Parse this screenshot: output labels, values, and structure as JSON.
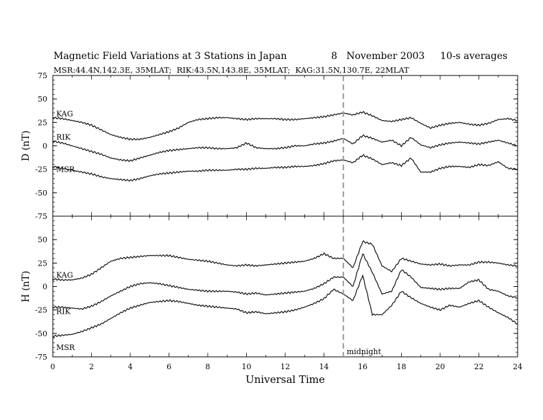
{
  "title": {
    "main": "Magnetic Field Variations at 3 Stations in Japan",
    "date": "8   November 2003",
    "averaging": "10-s averages",
    "stations": "MSR:44.4N,142.3E, 35MLAT;  RIK:43.5N,143.8E, 35MLAT;  KAG:31.5N,130.7E, 22MLAT"
  },
  "chart_data": [
    {
      "type": "line",
      "panel": "D",
      "ylabel": "D (nT)",
      "ylim": [
        -75,
        75
      ],
      "yticks": [
        -75,
        -50,
        -25,
        0,
        25,
        50,
        75
      ],
      "xlim": [
        0,
        24
      ],
      "grid": false,
      "series": [
        {
          "name": "KAG",
          "x": [
            0,
            0.5,
            1,
            1.5,
            2,
            2.5,
            3,
            3.5,
            4,
            4.5,
            5,
            5.5,
            6,
            6.5,
            7,
            7.5,
            8,
            8.5,
            9,
            9.5,
            10,
            10.5,
            11,
            11.5,
            12,
            12.5,
            13,
            13.5,
            14,
            14.5,
            15,
            15.5,
            16,
            16.5,
            17,
            17.5,
            18,
            18.5,
            19,
            19.5,
            20,
            20.5,
            21,
            21.5,
            22,
            22.5,
            23,
            23.5,
            24
          ],
          "values": [
            30,
            29,
            27,
            25,
            22,
            17,
            12,
            9,
            7,
            7,
            9,
            12,
            15,
            19,
            25,
            28,
            29,
            30,
            30,
            29,
            28,
            29,
            29,
            29,
            28,
            28,
            29,
            30,
            31,
            33,
            35,
            33,
            36,
            32,
            27,
            26,
            28,
            30,
            24,
            19,
            22,
            24,
            25,
            23,
            22,
            24,
            28,
            29,
            27
          ]
        },
        {
          "name": "RIK",
          "x": [
            0,
            0.5,
            1,
            1.5,
            2,
            2.5,
            3,
            3.5,
            4,
            4.5,
            5,
            5.5,
            6,
            6.5,
            7,
            7.5,
            8,
            8.5,
            9,
            9.5,
            10,
            10.5,
            11,
            11.5,
            12,
            12.5,
            13,
            13.5,
            14,
            14.5,
            15,
            15.5,
            16,
            16.5,
            17,
            17.5,
            18,
            18.5,
            19,
            19.5,
            20,
            20.5,
            21,
            21.5,
            22,
            22.5,
            23,
            23.5,
            24
          ],
          "values": [
            5,
            3,
            0,
            -3,
            -6,
            -9,
            -13,
            -15,
            -16,
            -13,
            -10,
            -7,
            -5,
            -4,
            -3,
            -2,
            -2,
            -3,
            -3,
            -2,
            3,
            -2,
            -3,
            -3,
            -2,
            0,
            0,
            2,
            3,
            5,
            8,
            2,
            11,
            8,
            4,
            6,
            0,
            9,
            1,
            -2,
            1,
            3,
            4,
            3,
            2,
            4,
            6,
            3,
            0
          ]
        },
        {
          "name": "MSR",
          "x": [
            0,
            0.5,
            1,
            1.5,
            2,
            2.5,
            3,
            3.5,
            4,
            4.5,
            5,
            5.5,
            6,
            6.5,
            7,
            7.5,
            8,
            8.5,
            9,
            9.5,
            10,
            10.5,
            11,
            11.5,
            12,
            12.5,
            13,
            13.5,
            14,
            14.5,
            15,
            15.5,
            16,
            16.5,
            17,
            17.5,
            18,
            18.5,
            19,
            19.5,
            20,
            20.5,
            21,
            21.5,
            22,
            22.5,
            23,
            23.5,
            24
          ],
          "values": [
            -22,
            -24,
            -26,
            -28,
            -30,
            -33,
            -35,
            -36,
            -37,
            -35,
            -32,
            -30,
            -29,
            -28,
            -27,
            -27,
            -26,
            -26,
            -26,
            -25,
            -25,
            -24,
            -24,
            -23,
            -23,
            -22,
            -22,
            -21,
            -19,
            -16,
            -15,
            -18,
            -10,
            -14,
            -20,
            -18,
            -21,
            -13,
            -28,
            -28,
            -24,
            -22,
            -22,
            -23,
            -20,
            -21,
            -17,
            -24,
            -25
          ]
        }
      ]
    },
    {
      "type": "line",
      "panel": "H",
      "ylabel": "H (nT)",
      "xlabel": "Universal Time",
      "ylim": [
        -75,
        75
      ],
      "yticks": [
        -75,
        -50,
        -25,
        0,
        25,
        50,
        75
      ],
      "xlim": [
        0,
        24
      ],
      "xticks": [
        0,
        2,
        4,
        6,
        8,
        10,
        12,
        14,
        16,
        18,
        20,
        22,
        24
      ],
      "grid": false,
      "series": [
        {
          "name": "KAG",
          "x": [
            0,
            0.5,
            1,
            1.5,
            2,
            2.5,
            3,
            3.5,
            4,
            4.5,
            5,
            5.5,
            6,
            6.5,
            7,
            7.5,
            8,
            8.5,
            9,
            9.5,
            10,
            10.5,
            11,
            11.5,
            12,
            12.5,
            13,
            13.5,
            14,
            14.5,
            15,
            15.5,
            16,
            16.5,
            17,
            17.5,
            18,
            18.5,
            19,
            19.5,
            20,
            20.5,
            21,
            21.5,
            22,
            22.5,
            23,
            23.5,
            24
          ],
          "values": [
            8,
            7,
            7,
            9,
            13,
            20,
            27,
            30,
            31,
            32,
            33,
            33,
            33,
            31,
            29,
            28,
            27,
            25,
            23,
            22,
            23,
            22,
            23,
            24,
            25,
            26,
            27,
            30,
            35,
            30,
            30,
            20,
            48,
            45,
            22,
            16,
            30,
            27,
            24,
            23,
            24,
            22,
            23,
            23,
            26,
            26,
            25,
            23,
            22
          ]
        },
        {
          "name": "RIK",
          "x": [
            0,
            0.5,
            1,
            1.5,
            2,
            2.5,
            3,
            3.5,
            4,
            4.5,
            5,
            5.5,
            6,
            6.5,
            7,
            7.5,
            8,
            8.5,
            9,
            9.5,
            10,
            10.5,
            11,
            11.5,
            12,
            12.5,
            13,
            13.5,
            14,
            14.5,
            15,
            15.5,
            16,
            16.5,
            17,
            17.5,
            18,
            18.5,
            19,
            19.5,
            20,
            20.5,
            21,
            21.5,
            22,
            22.5,
            23,
            23.5,
            24
          ],
          "values": [
            -22,
            -22,
            -23,
            -24,
            -21,
            -16,
            -10,
            -5,
            0,
            3,
            4,
            3,
            1,
            -1,
            -3,
            -4,
            -5,
            -5,
            -5,
            -6,
            -8,
            -7,
            -9,
            -8,
            -7,
            -6,
            -5,
            -2,
            3,
            10,
            10,
            0,
            35,
            15,
            -8,
            -5,
            18,
            10,
            -1,
            -2,
            -3,
            -2,
            -2,
            5,
            7,
            -3,
            -5,
            -10,
            -12
          ]
        },
        {
          "name": "MSR",
          "x": [
            0,
            0.5,
            1,
            1.5,
            2,
            2.5,
            3,
            3.5,
            4,
            4.5,
            5,
            5.5,
            6,
            6.5,
            7,
            7.5,
            8,
            8.5,
            9,
            9.5,
            10,
            10.5,
            11,
            11.5,
            12,
            12.5,
            13,
            13.5,
            14,
            14.5,
            15,
            15.5,
            16,
            16.5,
            17,
            17.5,
            18,
            18.5,
            19,
            19.5,
            20,
            20.5,
            21,
            21.5,
            22,
            22.5,
            23,
            23.5,
            24
          ],
          "values": [
            -53,
            -52,
            -51,
            -48,
            -44,
            -40,
            -34,
            -28,
            -23,
            -20,
            -17,
            -16,
            -15,
            -16,
            -18,
            -20,
            -21,
            -22,
            -23,
            -24,
            -28,
            -27,
            -29,
            -28,
            -27,
            -25,
            -22,
            -18,
            -13,
            -3,
            -8,
            -15,
            12,
            -30,
            -30,
            -20,
            -5,
            -12,
            -18,
            -22,
            -25,
            -20,
            -22,
            -18,
            -15,
            -22,
            -28,
            -33,
            -40
          ]
        }
      ],
      "annotations": [
        {
          "text": "midnight",
          "x": 15
        }
      ]
    }
  ]
}
